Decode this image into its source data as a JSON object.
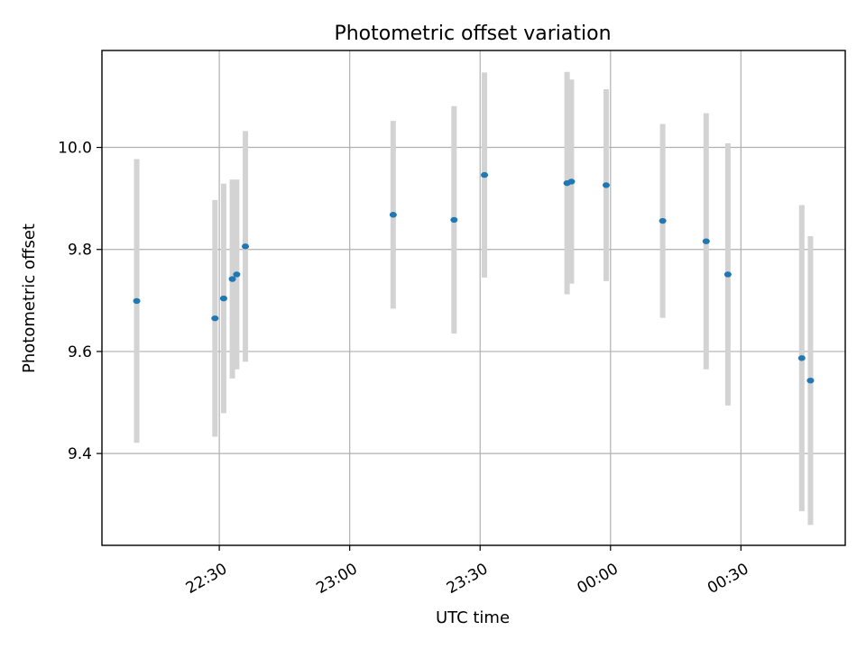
{
  "chart_data": {
    "type": "scatter",
    "title": "Photometric offset variation",
    "xlabel": "UTC time",
    "ylabel": "Photometric offset",
    "grid": true,
    "x_tick_labels": [
      "22:30",
      "23:00",
      "23:30",
      "00:00",
      "00:30"
    ],
    "x_tick_minutes": [
      0,
      30,
      60,
      90,
      120
    ],
    "xlim_minutes": [
      -27,
      144
    ],
    "y_ticks": [
      9.4,
      9.6,
      9.8,
      10.0
    ],
    "y_tick_labels": [
      "9.4",
      "9.6",
      "9.8",
      "10.0"
    ],
    "ylim": [
      9.22,
      10.19
    ],
    "point_color": "#1f77b4",
    "errorbar_color": "#d3d3d3",
    "series": [
      {
        "points": [
          {
            "time": "22:11",
            "y": 9.699,
            "err": 0.278
          },
          {
            "time": "22:29",
            "y": 9.665,
            "err": 0.232
          },
          {
            "time": "22:31",
            "y": 9.704,
            "err": 0.225
          },
          {
            "time": "22:33",
            "y": 9.742,
            "err": 0.195
          },
          {
            "time": "22:34",
            "y": 9.751,
            "err": 0.186
          },
          {
            "time": "22:36",
            "y": 9.806,
            "err": 0.226
          },
          {
            "time": "23:10",
            "y": 9.868,
            "err": 0.184
          },
          {
            "time": "23:24",
            "y": 9.858,
            "err": 0.223
          },
          {
            "time": "23:31",
            "y": 9.946,
            "err": 0.201
          },
          {
            "time": "23:50",
            "y": 9.93,
            "err": 0.218
          },
          {
            "time": "23:51",
            "y": 9.933,
            "err": 0.2
          },
          {
            "time": "23:59",
            "y": 9.926,
            "err": 0.188
          },
          {
            "time": "00:12",
            "y": 9.856,
            "err": 0.19
          },
          {
            "time": "00:22",
            "y": 9.816,
            "err": 0.251
          },
          {
            "time": "00:27",
            "y": 9.751,
            "err": 0.257
          },
          {
            "time": "00:44",
            "y": 9.587,
            "err": 0.3
          },
          {
            "time": "00:46",
            "y": 9.543,
            "err": 0.283
          }
        ]
      }
    ]
  }
}
